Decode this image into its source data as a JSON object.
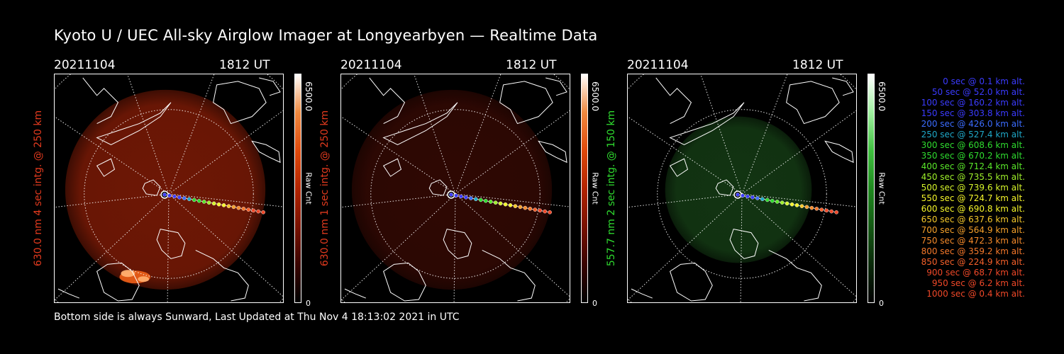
{
  "title": "Kyoto U / UEC All-sky Airglow Imager at Longyearbyen — Realtime Data",
  "footer": "Bottom side is always Sunward, Last Updated at Thu Nov  4 18:13:02 2021 in UTC",
  "panels": [
    {
      "date": "20211104",
      "time": "1812 UT",
      "side_label": "630.0 nm 4 sec intg. @ 250 km",
      "label_color": "#e23a1e",
      "cbar_max": "6500.0",
      "cbar_label": "Raw Cnt",
      "cbar_min": "0",
      "colormap": [
        "#000000",
        "#3a0400",
        "#7a1200",
        "#b32400",
        "#e04a0c",
        "#f08a40",
        "#ffffff"
      ],
      "glow_color": "#7a1a06",
      "glow_opacity": 0.9,
      "aurora": true
    },
    {
      "date": "20211104",
      "time": "1812 UT",
      "side_label": "630.0 nm 1 sec intg. @ 250 km",
      "label_color": "#e23a1e",
      "cbar_max": "6500.0",
      "cbar_label": "Raw Cnt",
      "cbar_min": "0",
      "colormap": [
        "#000000",
        "#3a0400",
        "#7a1200",
        "#b32400",
        "#e04a0c",
        "#f08a40",
        "#ffffff"
      ],
      "glow_color": "#3a0a04",
      "glow_opacity": 0.8,
      "aurora": false
    },
    {
      "date": "20211104",
      "time": "1812 UT",
      "side_label": "557.7 nm 2 sec intg. @ 150 km",
      "label_color": "#2fdc2f",
      "cbar_max": "6500.0",
      "cbar_label": "Raw Cnt",
      "cbar_min": "0",
      "colormap": [
        "#000000",
        "#0a2a0a",
        "#155a15",
        "#1f8a1f",
        "#40c040",
        "#a0f0a0",
        "#ffffff"
      ],
      "glow_color": "#143a14",
      "glow_opacity": 0.9,
      "aurora": false
    }
  ],
  "legend": [
    {
      "text": "0 sec @   0.1 km alt.",
      "color": "#3b3bff"
    },
    {
      "text": "50 sec @  52.0 km alt.",
      "color": "#3b3bff"
    },
    {
      "text": "100 sec @ 160.2 km alt.",
      "color": "#3b3bff"
    },
    {
      "text": "150 sec @ 303.8 km alt.",
      "color": "#3b3bff"
    },
    {
      "text": "200 sec @ 426.0 km alt.",
      "color": "#3b6cff"
    },
    {
      "text": "250 sec @ 527.4 km alt.",
      "color": "#1fa8c8"
    },
    {
      "text": "300 sec @ 608.6 km alt.",
      "color": "#2fdc2f"
    },
    {
      "text": "350 sec @ 670.2 km alt.",
      "color": "#2fdc2f"
    },
    {
      "text": "400 sec @ 712.4 km alt.",
      "color": "#5ae82a"
    },
    {
      "text": "450 sec @ 735.5 km alt.",
      "color": "#9ef02a"
    },
    {
      "text": "500 sec @ 739.6 km alt.",
      "color": "#d6f52a"
    },
    {
      "text": "550 sec @ 724.7 km alt.",
      "color": "#f5f52a"
    },
    {
      "text": "600 sec @ 690.8 km alt.",
      "color": "#f5f52a"
    },
    {
      "text": "650 sec @ 637.6 km alt.",
      "color": "#f5c82a"
    },
    {
      "text": "700 sec @ 564.9 km alt.",
      "color": "#f5a02a"
    },
    {
      "text": "750 sec @ 472.3 km alt.",
      "color": "#f58a2a"
    },
    {
      "text": "800 sec @ 359.2 km alt.",
      "color": "#f5782a"
    },
    {
      "text": "850 sec @ 224.9 km alt.",
      "color": "#f5602a"
    },
    {
      "text": "900 sec @  68.7 km alt.",
      "color": "#f04828"
    },
    {
      "text": "950 sec @   6.2 km alt.",
      "color": "#f04828"
    },
    {
      "text": "1000 sec @   0.4 km alt.",
      "color": "#f04828"
    }
  ]
}
